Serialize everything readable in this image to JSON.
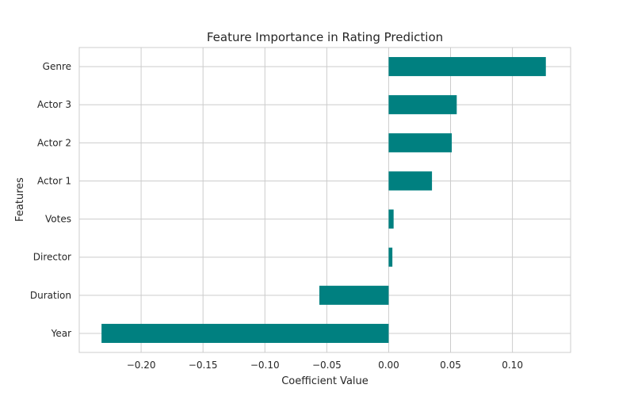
{
  "chart_data": {
    "type": "bar",
    "orientation": "horizontal",
    "title": "Feature Importance in Rating Prediction",
    "xlabel": "Coefficient Value",
    "ylabel": "Features",
    "categories": [
      "Year",
      "Duration",
      "Director",
      "Votes",
      "Actor 1",
      "Actor 2",
      "Actor 3",
      "Genre"
    ],
    "values": [
      -0.232,
      -0.056,
      0.003,
      0.004,
      0.035,
      0.051,
      0.055,
      0.127
    ],
    "xlim": [
      -0.25,
      0.147
    ],
    "xticks": [
      -0.2,
      -0.15,
      -0.1,
      -0.05,
      0.0,
      0.05,
      0.1
    ],
    "xtick_labels": [
      "−0.20",
      "−0.15",
      "−0.10",
      "−0.05",
      "0.00",
      "0.05",
      "0.10"
    ],
    "bar_color": "#008080",
    "grid": true
  }
}
